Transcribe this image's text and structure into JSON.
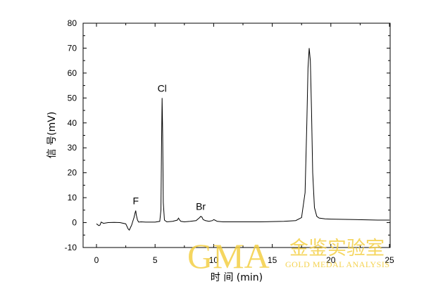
{
  "chart_data": {
    "type": "line",
    "title": "",
    "xlabel": "时 间 (min)",
    "ylabel": "信 号(mV)",
    "xlim": [
      -1.5,
      26
    ],
    "ylim": [
      -10,
      80
    ],
    "x_ticks": [
      "0",
      "5",
      "10",
      "15",
      "20",
      "25"
    ],
    "y_ticks": [
      "-10",
      "0",
      "10",
      "20",
      "30",
      "40",
      "50",
      "60",
      "70",
      "80"
    ],
    "grid": false,
    "series": [
      {
        "x": [
          0.0,
          0.2,
          0.3,
          0.4,
          0.6,
          1.0,
          1.5,
          2.0,
          2.5,
          2.7,
          2.8,
          2.9,
          3.0,
          3.1,
          3.2,
          3.3,
          3.35,
          3.4,
          3.5,
          3.6,
          3.8,
          4.2,
          5.0,
          5.4,
          5.5,
          5.55,
          5.6,
          5.65,
          5.7,
          5.8,
          6.0,
          6.5,
          6.9,
          7.0,
          7.1,
          7.2,
          7.5,
          8.0,
          8.5,
          8.8,
          8.9,
          9.0,
          9.1,
          9.3,
          9.6,
          9.9,
          10.0,
          10.1,
          10.3,
          10.8,
          12.0,
          14.0,
          16.0,
          17.0,
          17.5,
          17.8,
          17.95,
          18.05,
          18.15,
          18.25,
          18.35,
          18.45,
          18.6,
          18.8,
          19.0,
          19.5,
          20.0,
          22.0,
          24.0,
          25.0
        ],
        "y": [
          -0.5,
          -1.2,
          -1.0,
          0.2,
          -0.3,
          0.0,
          0.1,
          0.0,
          -0.5,
          -2.5,
          -3.0,
          -2.0,
          -1.0,
          0.5,
          2.0,
          4.0,
          4.8,
          3.0,
          1.0,
          0.2,
          0.3,
          0.2,
          0.2,
          0.5,
          5.0,
          30.0,
          50.0,
          35.0,
          8.0,
          1.0,
          0.3,
          0.5,
          1.0,
          1.8,
          1.0,
          0.5,
          0.3,
          0.5,
          0.8,
          2.0,
          2.5,
          2.2,
          1.2,
          0.8,
          0.5,
          0.8,
          1.2,
          1.0,
          0.5,
          0.3,
          0.3,
          0.3,
          0.5,
          0.8,
          2.0,
          12.0,
          40.0,
          62.0,
          70.0,
          65.0,
          45.0,
          20.0,
          6.0,
          2.5,
          1.8,
          1.5,
          1.4,
          1.2,
          1.0,
          1.0
        ]
      }
    ],
    "annotations": [
      {
        "text": "F",
        "x": 3.35,
        "y": 4.8
      },
      {
        "text": "Cl",
        "x": 5.6,
        "y": 50.0
      },
      {
        "text": "Br",
        "x": 8.9,
        "y": 2.5
      }
    ]
  },
  "watermark": {
    "big": "GMA",
    "cn": "金鉴实验室",
    "en": "GOLD MEDAL ANALYSIS"
  },
  "colors": {
    "line": "#000000",
    "watermark": "#f3ce3e"
  }
}
